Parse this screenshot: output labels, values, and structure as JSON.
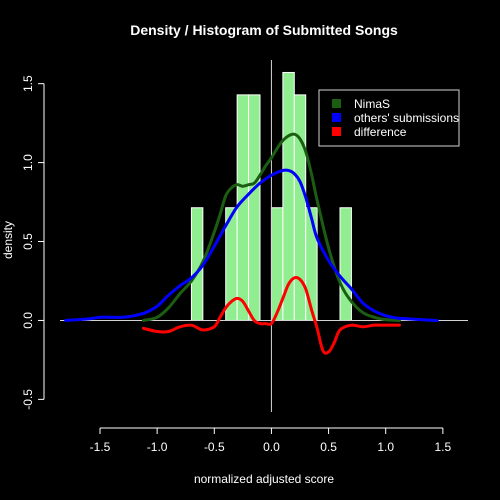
{
  "chart_data": {
    "type": "histogram",
    "title": "Density / Histogram of Submitted Songs",
    "xlabel": "normalized adjusted score",
    "ylabel": "density",
    "xlim": [
      -1.85,
      1.72
    ],
    "ylim": [
      -0.58,
      1.65
    ],
    "xticks": [
      -1.5,
      -1.0,
      -0.5,
      0.0,
      0.5,
      1.0,
      1.5
    ],
    "xtick_labels": [
      "-1.5",
      "-1.0",
      "-0.5",
      "0.0",
      "0.5",
      "1.0",
      "1.5"
    ],
    "yticks": [
      -0.5,
      0.0,
      0.5,
      1.0,
      1.5
    ],
    "ytick_labels": [
      "-0.5",
      "0.0",
      "0.5",
      "1.0",
      "1.5"
    ],
    "histogram": {
      "name": "NimaS",
      "color": "#90ee90",
      "bin_width": 0.1,
      "bins": [
        {
          "x0": -0.7,
          "x1": -0.6,
          "density": 0.714
        },
        {
          "x0": -0.4,
          "x1": -0.3,
          "density": 0.714
        },
        {
          "x0": -0.3,
          "x1": -0.2,
          "density": 1.429
        },
        {
          "x0": -0.2,
          "x1": -0.1,
          "density": 1.429
        },
        {
          "x0": 0.0,
          "x1": 0.1,
          "density": 0.714
        },
        {
          "x0": 0.1,
          "x1": 0.2,
          "density": 1.571
        },
        {
          "x0": 0.2,
          "x1": 0.3,
          "density": 1.429
        },
        {
          "x0": 0.3,
          "x1": 0.4,
          "density": 0.714
        },
        {
          "x0": 0.6,
          "x1": 0.7,
          "density": 0.714
        }
      ]
    },
    "series": [
      {
        "name": "NimaS",
        "color": "#1b5e12",
        "x": [
          -1.12,
          -1.0,
          -0.9,
          -0.8,
          -0.7,
          -0.6,
          -0.5,
          -0.45,
          -0.4,
          -0.35,
          -0.3,
          -0.25,
          -0.2,
          -0.15,
          -0.1,
          -0.05,
          0.0,
          0.05,
          0.1,
          0.15,
          0.2,
          0.25,
          0.3,
          0.35,
          0.4,
          0.5,
          0.6,
          0.7,
          0.8,
          0.9,
          1.0,
          1.12
        ],
        "y": [
          0.0,
          0.02,
          0.08,
          0.17,
          0.25,
          0.37,
          0.56,
          0.67,
          0.79,
          0.84,
          0.86,
          0.85,
          0.86,
          0.87,
          0.92,
          0.98,
          1.03,
          1.09,
          1.14,
          1.17,
          1.18,
          1.15,
          1.07,
          0.93,
          0.76,
          0.46,
          0.24,
          0.12,
          0.05,
          0.02,
          0.005,
          0.0
        ]
      },
      {
        "name": "others' submissions",
        "color": "#0000ff",
        "x": [
          -1.8,
          -1.6,
          -1.5,
          -1.4,
          -1.3,
          -1.2,
          -1.1,
          -1.0,
          -0.9,
          -0.8,
          -0.7,
          -0.6,
          -0.5,
          -0.4,
          -0.3,
          -0.2,
          -0.1,
          0.0,
          0.1,
          0.15,
          0.2,
          0.25,
          0.3,
          0.35,
          0.4,
          0.5,
          0.6,
          0.7,
          0.8,
          0.9,
          1.0,
          1.1,
          1.2,
          1.3,
          1.45
        ],
        "y": [
          0.0,
          0.01,
          0.02,
          0.02,
          0.02,
          0.03,
          0.05,
          0.09,
          0.16,
          0.22,
          0.27,
          0.35,
          0.47,
          0.6,
          0.72,
          0.8,
          0.87,
          0.92,
          0.95,
          0.95,
          0.93,
          0.88,
          0.78,
          0.65,
          0.52,
          0.38,
          0.28,
          0.2,
          0.11,
          0.06,
          0.03,
          0.015,
          0.01,
          0.005,
          0.0
        ]
      },
      {
        "name": "difference",
        "color": "#ff0000",
        "x": [
          -1.12,
          -1.0,
          -0.9,
          -0.8,
          -0.7,
          -0.6,
          -0.5,
          -0.45,
          -0.4,
          -0.35,
          -0.3,
          -0.25,
          -0.2,
          -0.15,
          -0.1,
          -0.05,
          0.0,
          0.05,
          0.1,
          0.15,
          0.2,
          0.25,
          0.3,
          0.35,
          0.4,
          0.45,
          0.5,
          0.55,
          0.6,
          0.7,
          0.8,
          0.9,
          1.0,
          1.12
        ],
        "y": [
          -0.05,
          -0.07,
          -0.07,
          -0.04,
          -0.03,
          -0.06,
          -0.04,
          0.02,
          0.08,
          0.12,
          0.14,
          0.12,
          0.06,
          0.0,
          -0.02,
          -0.02,
          -0.02,
          0.05,
          0.14,
          0.23,
          0.27,
          0.26,
          0.2,
          0.07,
          -0.05,
          -0.19,
          -0.2,
          -0.14,
          -0.06,
          -0.03,
          -0.04,
          -0.03,
          -0.03,
          -0.03
        ]
      }
    ],
    "reference_lines": {
      "horizontal_y": 0.0,
      "vertical_x": 0.0,
      "color": "#d3d3d3"
    },
    "legend": {
      "placement": "top-right",
      "entries": [
        {
          "label": "NimaS",
          "color": "#1b5e12"
        },
        {
          "label": "others' submissions",
          "color": "#0000ff"
        },
        {
          "label": "difference",
          "color": "#ff0000"
        }
      ]
    },
    "grid": false
  }
}
